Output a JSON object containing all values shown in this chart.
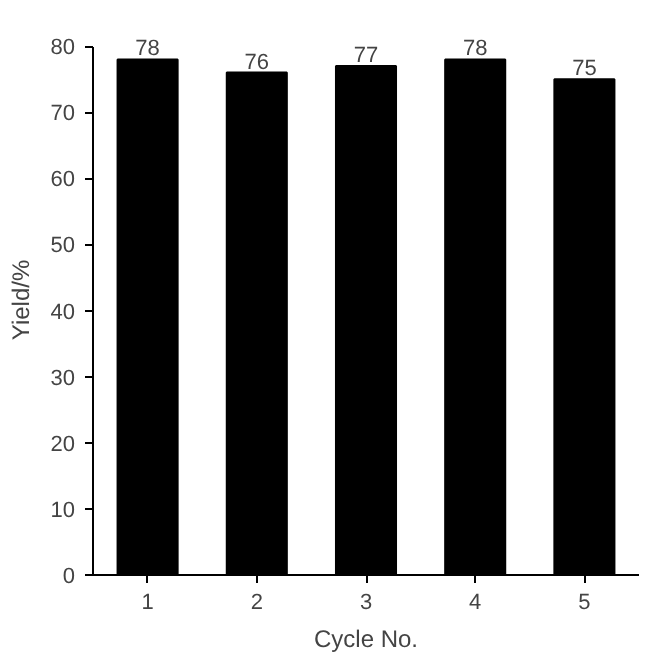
{
  "chart_data": {
    "type": "bar",
    "xlabel": "Cycle No.",
    "ylabel": "Yield/%",
    "categories": [
      "1",
      "2",
      "3",
      "4",
      "5"
    ],
    "values": [
      78,
      76,
      77,
      78,
      75
    ],
    "color": "#000000",
    "ylim": [
      0,
      80
    ],
    "yticks": [
      0,
      10,
      20,
      30,
      40,
      50,
      60,
      70,
      80
    ],
    "grid": false,
    "data_labels": true
  }
}
